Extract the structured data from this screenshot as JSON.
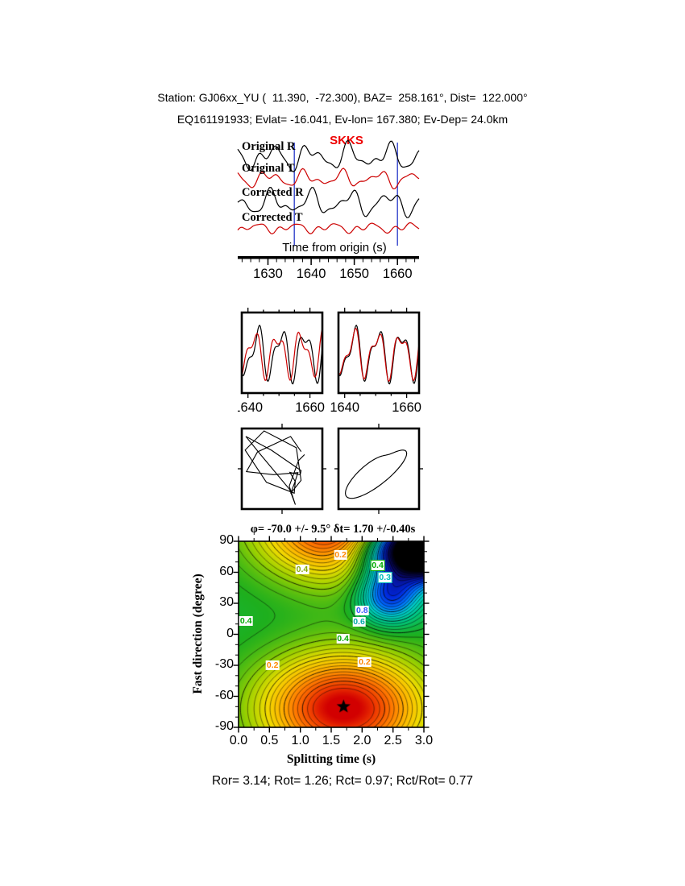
{
  "header": {
    "line1": "Station: GJ06xx_YU (  11.390,  -72.300), BAZ=  258.161°, Dist=  122.000°",
    "line2": "EQ161191933; Evlat= -16.041, Ev-lon= 167.380; Ev-Dep= 24.0km"
  },
  "footer": {
    "stats": "Ror= 3.14; Rot= 1.26; Rct= 0.97; Rct/Rot= 0.77"
  },
  "colors": {
    "trace_black": "#000000",
    "trace_red": "#cc0000",
    "window_marker": "#3344cc",
    "phase": "#ee0000"
  },
  "chart_data": [
    {
      "id": "seismograms",
      "type": "line",
      "xlabel": "Time from origin (s)",
      "phase_label": "SKKS",
      "x_range": [
        1623,
        1665
      ],
      "x_ticks": [
        "1630",
        "1640",
        "1650",
        "1660"
      ],
      "minor_tick_step": 2,
      "window_markers": [
        1636.1,
        1660.0
      ],
      "traces": [
        {
          "label": "Original R",
          "color": "#000000",
          "scale": 11,
          "harmonics": [
            [
              1,
              9.0,
              0.2
            ],
            [
              0.6,
              5.2,
              1.5
            ],
            [
              0.35,
              3.4,
              2.8
            ]
          ]
        },
        {
          "label": "Original T",
          "color": "#cc0000",
          "scale": 8.5,
          "harmonics": [
            [
              0.8,
              8.4,
              1.1
            ],
            [
              0.5,
              4.8,
              0.3
            ],
            [
              0.3,
              3.2,
              2.2
            ]
          ]
        },
        {
          "label": "Corrected R",
          "color": "#000000",
          "scale": 11,
          "harmonics": [
            [
              1,
              9.0,
              0.25
            ],
            [
              0.55,
              5.0,
              1.2
            ],
            [
              0.3,
              3.3,
              0.8
            ]
          ]
        },
        {
          "label": "Corrected T",
          "color": "#cc0000",
          "scale": 6.5,
          "harmonics": [
            [
              0.6,
              8.8,
              2.0
            ],
            [
              0.45,
              4.4,
              1.0
            ],
            [
              0.25,
              3.0,
              0.5
            ]
          ]
        }
      ]
    },
    {
      "id": "window-waveforms",
      "type": "line",
      "x_range": [
        1638,
        1664
      ],
      "x_ticks": [
        "1640",
        "1660"
      ],
      "minor_tick_step": 5,
      "panels": [
        {
          "name": "before-correction",
          "series": [
            {
              "color": "#000000",
              "scale": 26,
              "harmonics": [
                [
                  1,
                  7.6,
                  0.3
                ],
                [
                  0.5,
                  4.1,
                  1.6
                ]
              ]
            },
            {
              "color": "#cc0000",
              "scale": 24,
              "harmonics": [
                [
                  0.95,
                  7.6,
                  1.25
                ],
                [
                  0.5,
                  4.1,
                  2.5
                ]
              ]
            }
          ]
        },
        {
          "name": "after-correction",
          "series": [
            {
              "color": "#000000",
              "scale": 26,
              "harmonics": [
                [
                  1,
                  7.6,
                  0.3
                ],
                [
                  0.5,
                  4.1,
                  1.6
                ]
              ]
            },
            {
              "color": "#cc0000",
              "scale": 24.5,
              "harmonics": [
                [
                  0.97,
                  7.6,
                  0.45
                ],
                [
                  0.48,
                  4.1,
                  1.78
                ]
              ]
            }
          ]
        }
      ]
    },
    {
      "id": "particle-motion",
      "type": "line",
      "panels": [
        {
          "name": "uncorrected",
          "dt": 1.15,
          "t_max": 29,
          "x_harmonics": [
            [
              28,
              9.5,
              0.4
            ],
            [
              18,
              4.7,
              1.9
            ]
          ],
          "y_harmonics": [
            [
              28,
              9.5,
              2.7
            ],
            [
              19,
              5.4,
              0.3
            ]
          ]
        },
        {
          "name": "corrected",
          "dt": 0.12,
          "t_max": 24,
          "x_harmonics": [
            [
              34,
              11,
              0.2
            ],
            [
              10,
              5.5,
              0.9
            ]
          ],
          "y_harmonics": [
            [
              28,
              11,
              -0.45
            ],
            [
              9,
              5.5,
              0.3
            ]
          ]
        }
      ]
    },
    {
      "id": "error-surface",
      "type": "contour",
      "title": "φ= -70.0 +/- 9.5°  δt= 1.70 +/-0.40s",
      "xlabel": "Splitting time (s)",
      "ylabel": "Fast direction (degree)",
      "xlim": [
        0,
        3
      ],
      "ylim": [
        -90,
        90
      ],
      "x_ticks": [
        "0.0",
        "0.5",
        "1.0",
        "1.5",
        "2.0",
        "2.5",
        "3.0"
      ],
      "y_ticks": [
        "90",
        "60",
        "30",
        "0",
        "-30",
        "-60",
        "-90"
      ],
      "x_minor_step": 0.25,
      "y_minor_step": 10,
      "best_fit": {
        "splitting_time": 1.7,
        "splitting_time_error": 0.4,
        "fast_direction": -70.0,
        "fast_direction_error": 9.5
      },
      "contour_labels": [
        {
          "text": "0.2",
          "color": "#ff8800",
          "x": 1.65,
          "y": 77,
          "boxed": false
        },
        {
          "text": "0.4",
          "color": "#88aa00",
          "x": 1.03,
          "y": 63,
          "boxed": false
        },
        {
          "text": "0.4",
          "color": "#00aa00",
          "x": 2.25,
          "y": 67,
          "boxed": true
        },
        {
          "text": "0.3",
          "color": "#00bbbb",
          "x": 2.37,
          "y": 55,
          "boxed": true
        },
        {
          "text": "0.8",
          "color": "#3355ff",
          "x": 2.0,
          "y": 23,
          "boxed": false
        },
        {
          "text": "0.6",
          "color": "#00aaaa",
          "x": 1.95,
          "y": 12,
          "boxed": false
        },
        {
          "text": "0.4",
          "color": "#00aa00",
          "x": 0.12,
          "y": 13,
          "boxed": false
        },
        {
          "text": "0.4",
          "color": "#00aa00",
          "x": 1.69,
          "y": -4,
          "boxed": false
        },
        {
          "text": "0.2",
          "color": "#ff8800",
          "x": 0.55,
          "y": -30,
          "boxed": false
        },
        {
          "text": "0.2",
          "color": "#ff8800",
          "x": 2.04,
          "y": -27,
          "boxed": false
        }
      ],
      "field": {
        "base": 0.5,
        "gaussians": [
          {
            "amp": -0.52,
            "x": 1.7,
            "y": -72,
            "sx": 1.3,
            "sy": 52
          },
          {
            "amp": -0.52,
            "x": 1.7,
            "y": 108,
            "sx": 1.3,
            "sy": 52
          },
          {
            "amp": 0.33,
            "x": 2.45,
            "y": 38,
            "sx": 0.5,
            "sy": 27
          },
          {
            "amp": 1.0,
            "x": 3.0,
            "y": 85,
            "sx": 0.9,
            "sy": 30
          }
        ],
        "contour_levels": {
          "start": 0.05,
          "step": 0.025,
          "end": 0.95
        },
        "colormap": [
          [
            0.0,
            [
              210,
              0,
              0
            ]
          ],
          [
            0.06,
            [
              240,
              60,
              0
            ]
          ],
          [
            0.14,
            [
              255,
              120,
              0
            ]
          ],
          [
            0.22,
            [
              255,
              180,
              0
            ]
          ],
          [
            0.3,
            [
              240,
              220,
              0
            ]
          ],
          [
            0.38,
            [
              160,
              210,
              0
            ]
          ],
          [
            0.48,
            [
              30,
              175,
              30
            ]
          ],
          [
            0.58,
            [
              0,
              200,
              130
            ]
          ],
          [
            0.66,
            [
              0,
              205,
              205
            ]
          ],
          [
            0.74,
            [
              0,
              120,
              255
            ]
          ],
          [
            0.82,
            [
              0,
              40,
              220
            ]
          ],
          [
            0.9,
            [
              10,
              10,
              120
            ]
          ],
          [
            1.0,
            [
              0,
              0,
              0
            ]
          ]
        ]
      }
    }
  ]
}
